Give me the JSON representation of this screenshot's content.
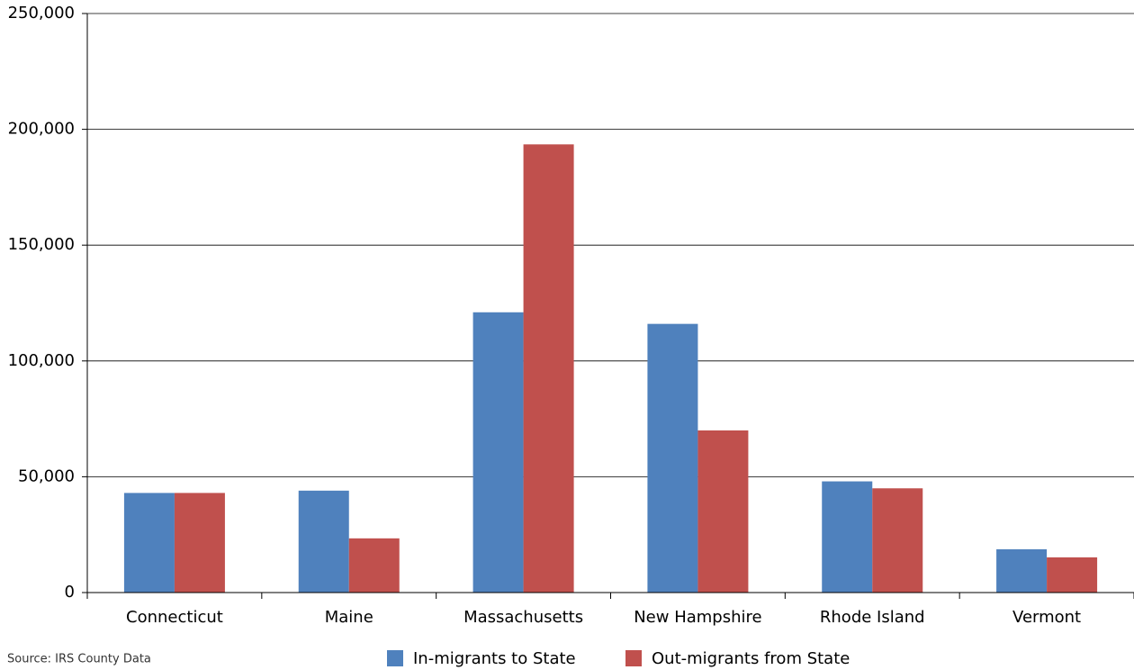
{
  "chart_data": {
    "type": "bar",
    "categories": [
      "Connecticut",
      "Maine",
      "Massachusetts",
      "New Hampshire",
      "Rhode Island",
      "Vermont"
    ],
    "series": [
      {
        "name": "In-migrants to State",
        "color": "#4f81bd",
        "values": [
          43000,
          44000,
          121000,
          116000,
          48000,
          18700
        ]
      },
      {
        "name": "Out-migrants from State",
        "color": "#c0504d",
        "values": [
          43000,
          23400,
          193500,
          70000,
          45000,
          15200
        ]
      }
    ],
    "ylim": [
      0,
      250000
    ],
    "yticks": [
      0,
      {
        "value": 50000,
        "label": "50,000"
      },
      {
        "value": 100000,
        "label": "100,000"
      },
      {
        "value": 150000,
        "label": "150,000"
      },
      {
        "value": 200000,
        "label": "200,000"
      },
      {
        "value": 250000,
        "label": "250,000"
      }
    ],
    "grid": true,
    "legend": "bottom",
    "source": "Source:  IRS County Data"
  }
}
